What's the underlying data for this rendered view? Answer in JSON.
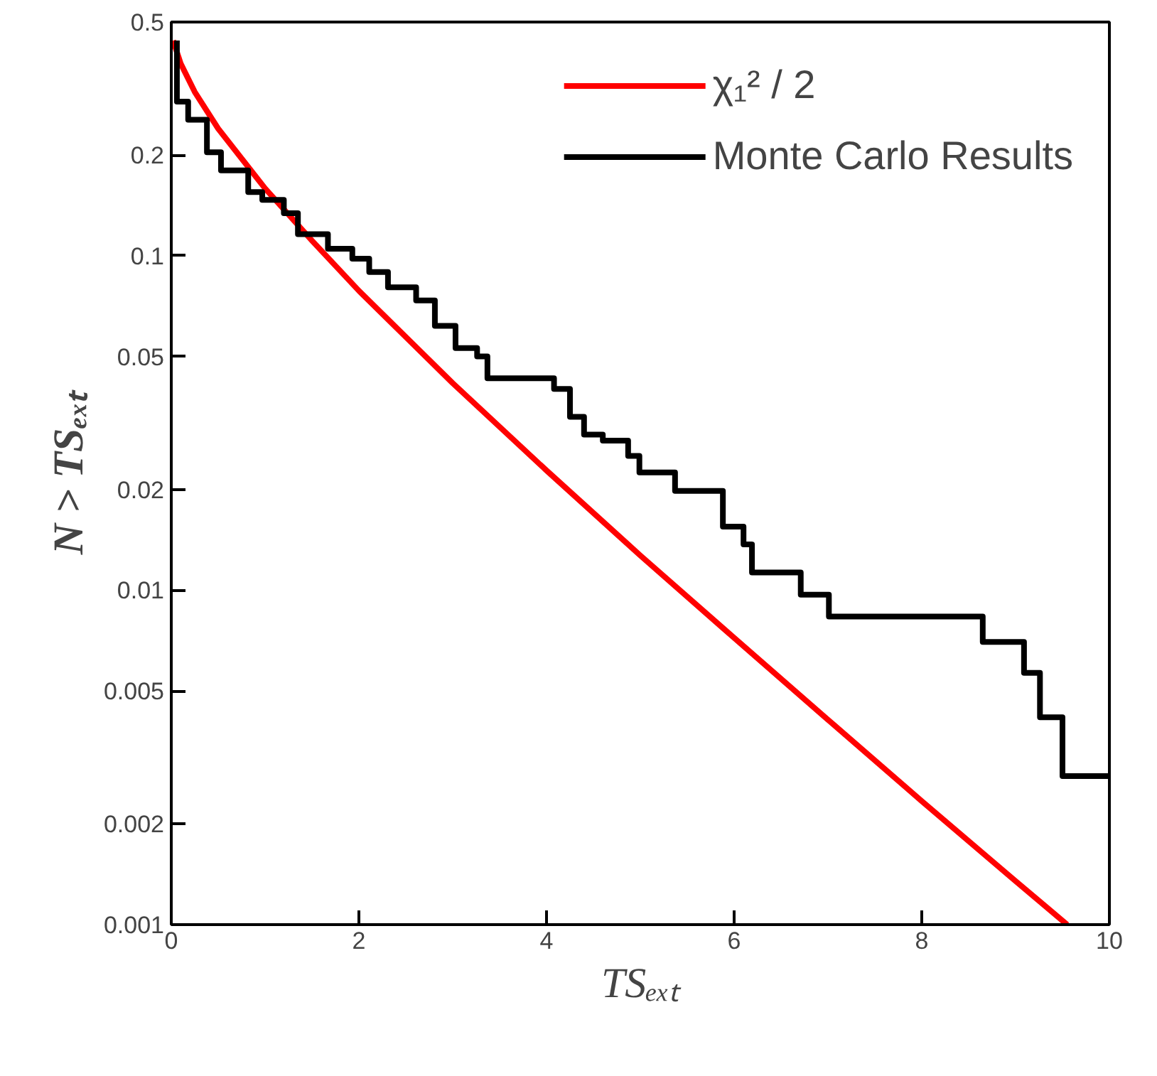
{
  "chart_data": {
    "type": "line",
    "xlabel": "TSₑₓₜ",
    "ylabel": "N > TSₑₓₜ",
    "xlim": [
      0,
      10
    ],
    "ylim": [
      0.001,
      0.5
    ],
    "log": "y",
    "xticks": [
      0,
      2,
      4,
      6,
      8,
      10
    ],
    "yticks": [
      0.001,
      0.002,
      0.005,
      0.01,
      0.02,
      0.05,
      0.1,
      0.2,
      0.5
    ],
    "grid": false,
    "legend": "top right",
    "marker": "none",
    "line_style": "solid",
    "series": [
      {
        "name": "χ₁² / 2",
        "color": "#ff0000",
        "x": [
          0.02,
          0.1,
          0.25,
          0.5,
          1,
          1.5,
          2,
          3,
          4,
          5,
          6,
          7,
          8,
          9,
          9.55
        ],
        "values": [
          0.44,
          0.376,
          0.309,
          0.24,
          0.159,
          0.111,
          0.0786,
          0.0416,
          0.0228,
          0.0127,
          0.0072,
          0.0041,
          0.00234,
          0.00135,
          0.001
        ]
      },
      {
        "name": "Monte Carlo Results",
        "color": "#000000",
        "type": "step",
        "x": [
          0.06,
          0.06,
          0.18,
          0.38,
          0.53,
          0.82,
          0.97,
          1.2,
          1.35,
          1.67,
          1.93,
          2.11,
          2.31,
          2.61,
          2.81,
          3.03,
          3.26,
          3.37,
          3.72,
          4.08,
          4.25,
          4.4,
          4.6,
          4.87,
          4.99,
          5.37,
          5.83,
          5.88,
          6.1,
          6.19,
          6.71,
          7.01,
          8.65,
          9.09,
          9.26,
          9.5,
          10
        ],
        "values": [
          0.44,
          0.289,
          0.255,
          0.204,
          0.18,
          0.155,
          0.147,
          0.134,
          0.116,
          0.105,
          0.098,
          0.0894,
          0.0805,
          0.0735,
          0.0617,
          0.053,
          0.05,
          0.043,
          0.043,
          0.04,
          0.033,
          0.0292,
          0.028,
          0.0252,
          0.0225,
          0.0198,
          0.0198,
          0.0155,
          0.0137,
          0.0113,
          0.0097,
          0.00834,
          0.007,
          0.00566,
          0.00417,
          0.00278,
          0.00278
        ]
      }
    ]
  }
}
